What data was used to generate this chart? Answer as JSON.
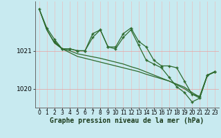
{
  "background_color": "#c8eaf0",
  "grid_color": "#d4ecec",
  "line_color": "#2d6a2d",
  "xlabel": "Graphe pression niveau de la mer (hPa)",
  "xlabel_fontsize": 7,
  "xtick_fontsize": 5.5,
  "ytick_fontsize": 6.5,
  "ylim": [
    1019.5,
    1022.3
  ],
  "xlim": [
    -0.5,
    23.5
  ],
  "yticks": [
    1020,
    1021
  ],
  "xticks": [
    0,
    1,
    2,
    3,
    4,
    5,
    6,
    7,
    8,
    9,
    10,
    11,
    12,
    13,
    14,
    15,
    16,
    17,
    18,
    19,
    20,
    21,
    22,
    23
  ],
  "series1_x": [
    0,
    1,
    2,
    3,
    4,
    5,
    6,
    7,
    8,
    9,
    10,
    11,
    12,
    13,
    14,
    15,
    16,
    17,
    18,
    19,
    20,
    21,
    22,
    23
  ],
  "series1_y": [
    1022.1,
    1021.6,
    1021.3,
    1021.05,
    1021.05,
    1021.0,
    1021.0,
    1021.45,
    1021.55,
    1021.1,
    1021.1,
    1021.45,
    1021.6,
    1021.25,
    1021.1,
    1020.75,
    1020.6,
    1020.6,
    1020.55,
    1020.2,
    1019.85,
    1019.8,
    1020.35,
    1020.45
  ],
  "series2_x": [
    2,
    3,
    4,
    5,
    6,
    7,
    8,
    9,
    10,
    11,
    12,
    13,
    14,
    15,
    16,
    17,
    18,
    19,
    20,
    21,
    22,
    23
  ],
  "series2_y": [
    1021.25,
    1021.05,
    1021.05,
    1021.0,
    1021.0,
    1021.35,
    1021.55,
    1021.1,
    1021.05,
    1021.35,
    1021.55,
    1021.15,
    1020.75,
    1020.65,
    1020.55,
    1020.3,
    1020.05,
    1019.9,
    1019.65,
    1019.75,
    1020.35,
    1020.45
  ],
  "series3_x": [
    0,
    1,
    2,
    3,
    4,
    5,
    6,
    7,
    8,
    9,
    10,
    11,
    12,
    13,
    14,
    15,
    16,
    17,
    18,
    19,
    20,
    21,
    22,
    23
  ],
  "series3_y": [
    1022.1,
    1021.55,
    1021.2,
    1021.05,
    1020.95,
    1020.85,
    1020.8,
    1020.75,
    1020.7,
    1020.65,
    1020.6,
    1020.55,
    1020.5,
    1020.45,
    1020.38,
    1020.32,
    1020.26,
    1020.2,
    1020.12,
    1020.04,
    1019.9,
    1019.78,
    1020.36,
    1020.45
  ],
  "series4_x": [
    0,
    1,
    2,
    3,
    4,
    5,
    6,
    7,
    8,
    9,
    10,
    11,
    12,
    13,
    14,
    15,
    16,
    17,
    18,
    19,
    20,
    21,
    22,
    23
  ],
  "series4_y": [
    1022.1,
    1021.55,
    1021.22,
    1021.05,
    1021.0,
    1020.92,
    1020.88,
    1020.84,
    1020.8,
    1020.75,
    1020.7,
    1020.65,
    1020.58,
    1020.52,
    1020.44,
    1020.36,
    1020.28,
    1020.2,
    1020.1,
    1020.0,
    1019.86,
    1019.75,
    1020.35,
    1020.44
  ]
}
